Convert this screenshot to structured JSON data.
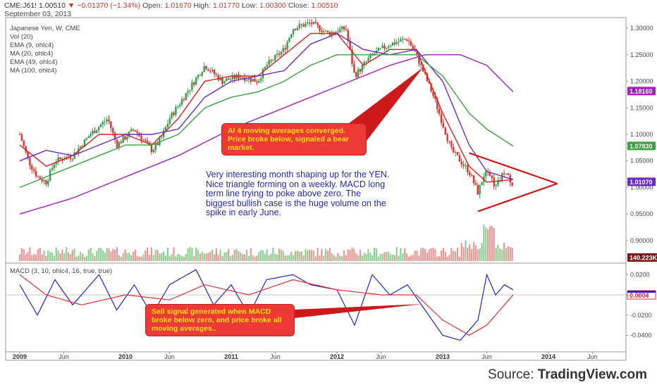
{
  "header": {
    "symbol": "CME:J61!",
    "last": "1.00510",
    "change": "−0.01370 (−1.34%)",
    "open_label": "Open:",
    "open": "1.01670",
    "high_label": "High:",
    "high": "1.01770",
    "low_label": "Low:",
    "low": "1.00300",
    "close_label": "Close:",
    "close": "1.00510",
    "date": "September 03, 2013"
  },
  "legend": [
    "Japanese Yen, W, CME",
    "Vol (20)",
    "EMA (9, ohlc4)",
    "MA (20, ohlc4)",
    "EMA (49, ohlc4)",
    "MA (100, ohlc4)"
  ],
  "macd_label": "MACD (3, 10, ohlc4, 16, true, true)",
  "callouts": {
    "ma_converged": "Al 4 moving averages converged. Price broke below, signaled a bear market.",
    "note": "Very interesting month shaping up for the YEN. Nice triangle forming on a weekly. MACD long term line trying to poke above zero. The biggest bullish case is the huge volume on the spike in early June.",
    "sell_signal": "Sell signal generated when MACD broke below zero, and price broke all moving averages.."
  },
  "source": {
    "prefix": "Source: ",
    "name": "TradingView.com"
  },
  "colors": {
    "up": "#2e9e4a",
    "down": "#d9322e",
    "ema9": "#e01f1f",
    "ma20": "#6a2cc0",
    "ema49": "#3aa040",
    "ma100": "#a020b8",
    "macd": "#2323c8",
    "signal": "#e03030",
    "annotation": "#cc1a1a"
  },
  "chart_data": [
    {
      "type": "candlestick",
      "title": "Japanese Yen, W, CME",
      "x_ticks": [
        "2009",
        "Jun",
        "2010",
        "Jun",
        "2011",
        "Jun",
        "2012",
        "Jun",
        "2013",
        "Jun",
        "2014",
        "Jun"
      ],
      "xlim": [
        "2009-01",
        "2014-09"
      ],
      "ylim": [
        0.88,
        1.32
      ],
      "y_ticks": [
        "1.30000",
        "1.25000",
        "1.20000",
        "1.15000",
        "1.10000",
        "1.05000",
        "1.00000",
        "0.95000",
        "0.90000"
      ],
      "price_points": [
        {
          "x": "2009-01",
          "y": 1.1
        },
        {
          "x": "2009-02",
          "y": 1.05
        },
        {
          "x": "2009-03",
          "y": 1.02
        },
        {
          "x": "2009-04",
          "y": 1.01
        },
        {
          "x": "2009-05",
          "y": 1.05
        },
        {
          "x": "2009-07",
          "y": 1.06
        },
        {
          "x": "2009-09",
          "y": 1.1
        },
        {
          "x": "2009-11",
          "y": 1.13
        },
        {
          "x": "2009-12",
          "y": 1.08
        },
        {
          "x": "2010-02",
          "y": 1.11
        },
        {
          "x": "2010-04",
          "y": 1.07
        },
        {
          "x": "2010-05",
          "y": 1.09
        },
        {
          "x": "2010-06",
          "y": 1.13
        },
        {
          "x": "2010-08",
          "y": 1.18
        },
        {
          "x": "2010-10",
          "y": 1.23
        },
        {
          "x": "2010-12",
          "y": 1.2
        },
        {
          "x": "2011-02",
          "y": 1.21
        },
        {
          "x": "2011-04",
          "y": 1.2
        },
        {
          "x": "2011-05",
          "y": 1.23
        },
        {
          "x": "2011-07",
          "y": 1.26
        },
        {
          "x": "2011-08",
          "y": 1.3
        },
        {
          "x": "2011-10",
          "y": 1.31
        },
        {
          "x": "2011-12",
          "y": 1.29
        },
        {
          "x": "2012-02",
          "y": 1.3
        },
        {
          "x": "2012-03",
          "y": 1.21
        },
        {
          "x": "2012-05",
          "y": 1.25
        },
        {
          "x": "2012-07",
          "y": 1.27
        },
        {
          "x": "2012-09",
          "y": 1.28
        },
        {
          "x": "2012-10",
          "y": 1.25
        },
        {
          "x": "2012-12",
          "y": 1.17
        },
        {
          "x": "2013-02",
          "y": 1.07
        },
        {
          "x": "2013-04",
          "y": 1.03
        },
        {
          "x": "2013-05",
          "y": 0.99
        },
        {
          "x": "2013-06",
          "y": 1.04
        },
        {
          "x": "2013-07",
          "y": 1.0
        },
        {
          "x": "2013-08",
          "y": 1.03
        },
        {
          "x": "2013-09",
          "y": 1.005
        }
      ],
      "series": [
        {
          "name": "EMA (9, ohlc4)",
          "points": [
            {
              "x": "2009-01",
              "y": 1.08
            },
            {
              "x": "2009-04",
              "y": 1.04
            },
            {
              "x": "2009-07",
              "y": 1.06
            },
            {
              "x": "2009-10",
              "y": 1.1
            },
            {
              "x": "2010-01",
              "y": 1.1
            },
            {
              "x": "2010-04",
              "y": 1.08
            },
            {
              "x": "2010-07",
              "y": 1.13
            },
            {
              "x": "2010-10",
              "y": 1.2
            },
            {
              "x": "2011-01",
              "y": 1.21
            },
            {
              "x": "2011-04",
              "y": 1.21
            },
            {
              "x": "2011-07",
              "y": 1.25
            },
            {
              "x": "2011-10",
              "y": 1.29
            },
            {
              "x": "2012-01",
              "y": 1.29
            },
            {
              "x": "2012-04",
              "y": 1.23
            },
            {
              "x": "2012-07",
              "y": 1.26
            },
            {
              "x": "2012-10",
              "y": 1.26
            },
            {
              "x": "2013-01",
              "y": 1.14
            },
            {
              "x": "2013-04",
              "y": 1.04
            },
            {
              "x": "2013-06",
              "y": 1.01
            },
            {
              "x": "2013-09",
              "y": 1.015
            }
          ]
        },
        {
          "name": "MA (20, ohlc4)",
          "points": [
            {
              "x": "2009-01",
              "y": 1.05
            },
            {
              "x": "2009-04",
              "y": 1.07
            },
            {
              "x": "2009-07",
              "y": 1.06
            },
            {
              "x": "2009-10",
              "y": 1.08
            },
            {
              "x": "2010-01",
              "y": 1.1
            },
            {
              "x": "2010-04",
              "y": 1.1
            },
            {
              "x": "2010-07",
              "y": 1.11
            },
            {
              "x": "2010-10",
              "y": 1.17
            },
            {
              "x": "2011-01",
              "y": 1.2
            },
            {
              "x": "2011-04",
              "y": 1.21
            },
            {
              "x": "2011-07",
              "y": 1.22
            },
            {
              "x": "2011-10",
              "y": 1.27
            },
            {
              "x": "2012-01",
              "y": 1.29
            },
            {
              "x": "2012-04",
              "y": 1.26
            },
            {
              "x": "2012-07",
              "y": 1.25
            },
            {
              "x": "2012-10",
              "y": 1.26
            },
            {
              "x": "2013-01",
              "y": 1.2
            },
            {
              "x": "2013-04",
              "y": 1.08
            },
            {
              "x": "2013-06",
              "y": 1.03
            },
            {
              "x": "2013-09",
              "y": 1.015
            }
          ]
        },
        {
          "name": "EMA (49, ohlc4)",
          "points": [
            {
              "x": "2009-01",
              "y": 1.0
            },
            {
              "x": "2009-04",
              "y": 1.02
            },
            {
              "x": "2009-07",
              "y": 1.04
            },
            {
              "x": "2009-10",
              "y": 1.06
            },
            {
              "x": "2010-01",
              "y": 1.08
            },
            {
              "x": "2010-04",
              "y": 1.08
            },
            {
              "x": "2010-07",
              "y": 1.1
            },
            {
              "x": "2010-10",
              "y": 1.15
            },
            {
              "x": "2011-01",
              "y": 1.17
            },
            {
              "x": "2011-04",
              "y": 1.18
            },
            {
              "x": "2011-07",
              "y": 1.2
            },
            {
              "x": "2011-10",
              "y": 1.23
            },
            {
              "x": "2012-01",
              "y": 1.25
            },
            {
              "x": "2012-04",
              "y": 1.25
            },
            {
              "x": "2012-07",
              "y": 1.25
            },
            {
              "x": "2012-10",
              "y": 1.25
            },
            {
              "x": "2013-01",
              "y": 1.21
            },
            {
              "x": "2013-04",
              "y": 1.14
            },
            {
              "x": "2013-06",
              "y": 1.11
            },
            {
              "x": "2013-09",
              "y": 1.078
            }
          ]
        },
        {
          "name": "MA (100, ohlc4)",
          "points": [
            {
              "x": "2009-01",
              "y": 0.95
            },
            {
              "x": "2009-07",
              "y": 0.98
            },
            {
              "x": "2010-01",
              "y": 1.02
            },
            {
              "x": "2010-07",
              "y": 1.06
            },
            {
              "x": "2011-01",
              "y": 1.11
            },
            {
              "x": "2011-07",
              "y": 1.15
            },
            {
              "x": "2012-01",
              "y": 1.19
            },
            {
              "x": "2012-07",
              "y": 1.23
            },
            {
              "x": "2012-11",
              "y": 1.25
            },
            {
              "x": "2013-03",
              "y": 1.25
            },
            {
              "x": "2013-06",
              "y": 1.23
            },
            {
              "x": "2013-09",
              "y": 1.18
            }
          ]
        }
      ],
      "price_labels": [
        "1.18160",
        "1.07830",
        "1.01070"
      ],
      "trendlines": [
        {
          "from": {
            "x": "2013-05",
            "y": 0.955
          },
          "to": {
            "x": "2013-12",
            "y": 1.01
          }
        },
        {
          "from": {
            "x": "2013-04",
            "y": 1.065
          },
          "to": {
            "x": "2013-12",
            "y": 1.01
          }
        }
      ]
    },
    {
      "type": "bar",
      "title": "Vol (20)",
      "volume_label": "140.223K"
    },
    {
      "type": "line",
      "title": "MACD (3, 10, ohlc4, 16, true, true)",
      "ylim": [
        -0.055,
        0.03
      ],
      "y_ticks": [
        "0.0200",
        "0.0000",
        "-0.0200",
        "-0.0400"
      ],
      "value_label": "0.0004",
      "series": [
        {
          "name": "MACD",
          "points": [
            {
              "x": "2009-01",
              "y": 0.01
            },
            {
              "x": "2009-03",
              "y": -0.02
            },
            {
              "x": "2009-05",
              "y": 0.015
            },
            {
              "x": "2009-07",
              "y": -0.01
            },
            {
              "x": "2009-10",
              "y": 0.02
            },
            {
              "x": "2009-12",
              "y": -0.015
            },
            {
              "x": "2010-02",
              "y": 0.01
            },
            {
              "x": "2010-04",
              "y": -0.02
            },
            {
              "x": "2010-06",
              "y": 0.01
            },
            {
              "x": "2010-09",
              "y": 0.025
            },
            {
              "x": "2010-11",
              "y": -0.01
            },
            {
              "x": "2011-01",
              "y": 0.01
            },
            {
              "x": "2011-03",
              "y": -0.02
            },
            {
              "x": "2011-05",
              "y": 0.015
            },
            {
              "x": "2011-08",
              "y": 0.02
            },
            {
              "x": "2011-10",
              "y": 0.01
            },
            {
              "x": "2012-01",
              "y": 0.005
            },
            {
              "x": "2012-03",
              "y": -0.03
            },
            {
              "x": "2012-05",
              "y": 0.02
            },
            {
              "x": "2012-07",
              "y": 0.0
            },
            {
              "x": "2012-09",
              "y": 0.01
            },
            {
              "x": "2012-11",
              "y": -0.015
            },
            {
              "x": "2013-01",
              "y": -0.04
            },
            {
              "x": "2013-03",
              "y": -0.045
            },
            {
              "x": "2013-05",
              "y": -0.025
            },
            {
              "x": "2013-06",
              "y": 0.02
            },
            {
              "x": "2013-07",
              "y": 0.0
            },
            {
              "x": "2013-08",
              "y": 0.01
            },
            {
              "x": "2013-09",
              "y": 0.005
            }
          ]
        },
        {
          "name": "Signal",
          "points": [
            {
              "x": "2009-01",
              "y": 0.02
            },
            {
              "x": "2009-04",
              "y": 0.0
            },
            {
              "x": "2009-08",
              "y": -0.01
            },
            {
              "x": "2010-01",
              "y": 0.0
            },
            {
              "x": "2010-06",
              "y": -0.005
            },
            {
              "x": "2010-10",
              "y": 0.01
            },
            {
              "x": "2011-03",
              "y": 0.0
            },
            {
              "x": "2011-08",
              "y": 0.015
            },
            {
              "x": "2012-01",
              "y": 0.005
            },
            {
              "x": "2012-06",
              "y": 0.0
            },
            {
              "x": "2012-10",
              "y": 0.0
            },
            {
              "x": "2013-01",
              "y": -0.025
            },
            {
              "x": "2013-04",
              "y": -0.04
            },
            {
              "x": "2013-06",
              "y": -0.03
            },
            {
              "x": "2013-09",
              "y": 0.0
            }
          ]
        }
      ]
    }
  ]
}
